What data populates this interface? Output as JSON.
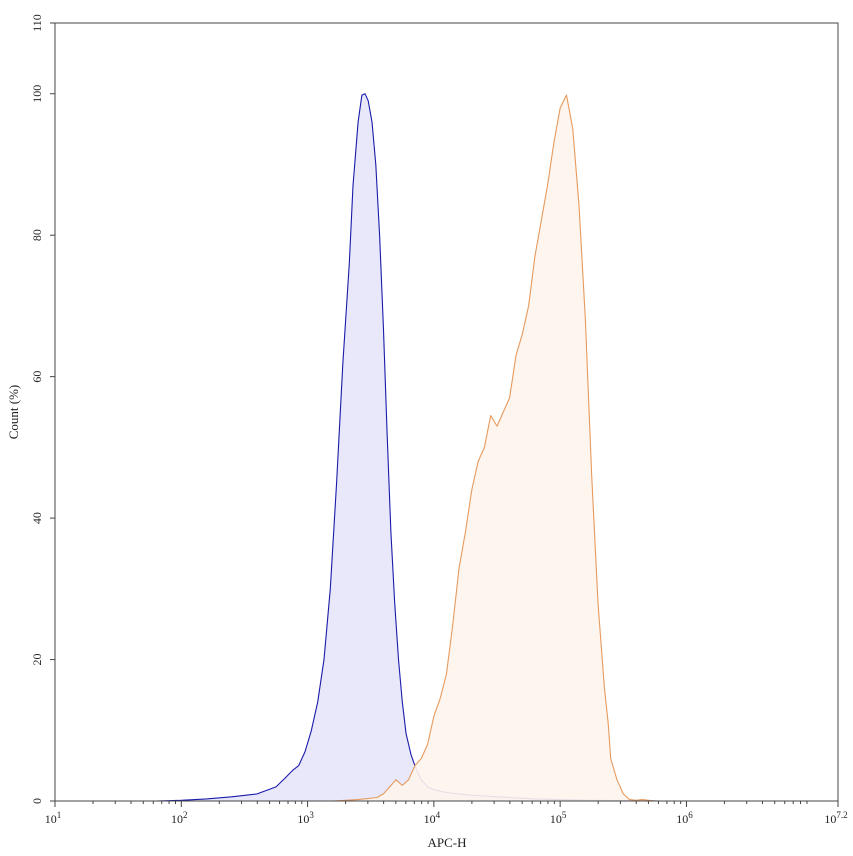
{
  "chart_data": {
    "type": "area",
    "title": "",
    "xlabel": "APC-H",
    "ylabel": "Count  (%)",
    "xscale": "log",
    "xlim": [
      1,
      7.2
    ],
    "ylim": [
      0,
      110
    ],
    "grid": false,
    "x_ticks": [
      {
        "exp": 1,
        "base": "10",
        "sup": "1"
      },
      {
        "exp": 2,
        "base": "10",
        "sup": "2"
      },
      {
        "exp": 3,
        "base": "10",
        "sup": "3"
      },
      {
        "exp": 4,
        "base": "10",
        "sup": "4"
      },
      {
        "exp": 5,
        "base": "10",
        "sup": "5"
      },
      {
        "exp": 6,
        "base": "10",
        "sup": "6"
      },
      {
        "exp": 7.2,
        "base": "10",
        "sup": "7.2"
      }
    ],
    "y_ticks": [
      {
        "value": 0,
        "label": "0"
      },
      {
        "value": 20,
        "label": "20"
      },
      {
        "value": 40,
        "label": "40"
      },
      {
        "value": 60,
        "label": "60"
      },
      {
        "value": 80,
        "label": "80"
      },
      {
        "value": 100,
        "label": "100"
      },
      {
        "value": 110,
        "label": "110"
      }
    ],
    "series": [
      {
        "stroke": "#1a1aaa",
        "fill": "#e6e6fa",
        "x_log10": [
          1.35,
          1.8,
          2.0,
          2.2,
          2.4,
          2.6,
          2.75,
          2.82,
          2.88,
          2.93,
          2.98,
          3.03,
          3.08,
          3.13,
          3.18,
          3.23,
          3.28,
          3.33,
          3.36,
          3.4,
          3.43,
          3.455,
          3.48,
          3.51,
          3.54,
          3.57,
          3.6,
          3.63,
          3.66,
          3.69,
          3.72,
          3.75,
          3.78,
          3.82,
          3.86,
          3.9,
          3.95,
          4.0,
          4.05,
          4.1,
          4.2,
          4.3,
          4.4,
          4.5,
          4.6,
          4.7,
          4.8,
          5.0,
          5.2,
          5.5,
          5.8,
          6.0
        ],
        "y": [
          0,
          0,
          0.1,
          0.3,
          0.6,
          1.0,
          2.0,
          3.2,
          4.3,
          5.0,
          7.0,
          10.0,
          14.0,
          20.0,
          30.0,
          45.0,
          62.0,
          76.0,
          87.0,
          96.0,
          99.8,
          100.0,
          99.0,
          96.0,
          90.0,
          80.0,
          67.0,
          52.0,
          38.0,
          28.0,
          20.0,
          14.0,
          9.5,
          6.5,
          4.5,
          3.0,
          2.0,
          1.6,
          1.4,
          1.2,
          1.0,
          0.8,
          0.7,
          0.6,
          0.5,
          0.4,
          0.3,
          0.2,
          0.1,
          0.05,
          0,
          0
        ]
      },
      {
        "stroke": "#e69a5e",
        "fill": "#fdf4ec",
        "x_log10": [
          3.2,
          3.4,
          3.55,
          3.6,
          3.65,
          3.7,
          3.75,
          3.8,
          3.85,
          3.9,
          3.95,
          4.0,
          4.05,
          4.1,
          4.15,
          4.2,
          4.25,
          4.3,
          4.35,
          4.4,
          4.45,
          4.5,
          4.55,
          4.6,
          4.65,
          4.7,
          4.75,
          4.8,
          4.85,
          4.9,
          4.95,
          5.0,
          5.05,
          5.1,
          5.15,
          5.2,
          5.25,
          5.3,
          5.35,
          5.38,
          5.4,
          5.45,
          5.5,
          5.55,
          5.6,
          5.65,
          5.7,
          5.75,
          5.8,
          5.85,
          5.9,
          5.95,
          6.0,
          6.1,
          6.2,
          6.4,
          6.6
        ],
        "y": [
          0,
          0.2,
          0.5,
          1.0,
          2.0,
          3.0,
          2.2,
          3.0,
          5.0,
          6.0,
          8.0,
          12.0,
          14.5,
          18.0,
          25.0,
          33.0,
          38.0,
          44.0,
          48.0,
          50.0,
          54.5,
          53.0,
          55.0,
          57.0,
          63.0,
          66.0,
          70.0,
          77.0,
          82.0,
          87.0,
          93.0,
          98.0,
          99.8,
          95.0,
          84.0,
          68.0,
          46.0,
          28.0,
          16.0,
          11.0,
          6.0,
          3.0,
          1.0,
          0.2,
          0.1,
          0.2,
          0.1,
          0,
          0,
          0,
          0,
          0,
          0,
          0,
          0,
          0,
          0
        ]
      }
    ]
  }
}
